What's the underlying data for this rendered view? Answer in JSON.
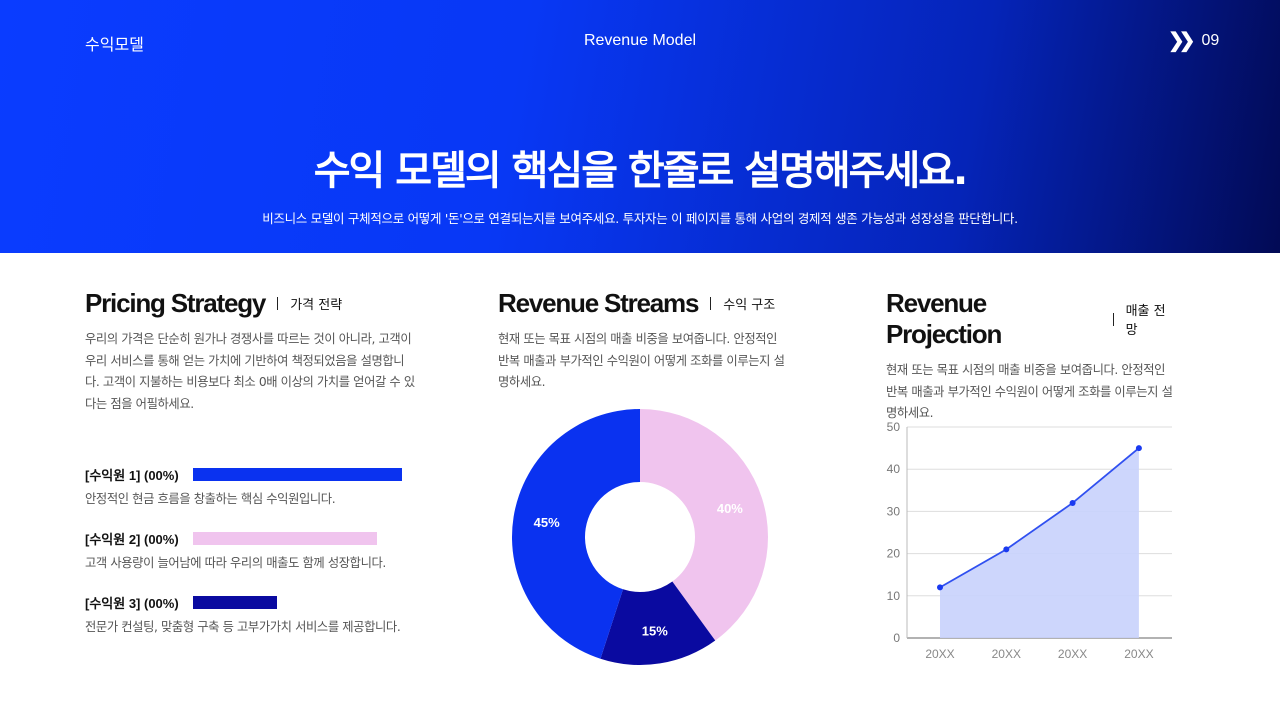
{
  "header": {
    "section": "수익모델",
    "center": "Revenue Model",
    "page_icon": "double-chevron-right",
    "page": "09"
  },
  "hero": {
    "title": "수익 모델의 핵심을 한줄로 설명해주세요.",
    "subtitle": "비즈니스 모델이 구체적으로 어떻게 '돈'으로 연결되는지를 보여주세요. 투자자는 이 페이지를 통해 사업의 경제적 생존 가능성과 성장성을 판단합니다."
  },
  "pricing": {
    "title": "Pricing Strategy",
    "subtitle": "가격 전략",
    "desc": "우리의 가격은 단순히 원가나 경쟁사를 따르는 것이 아니라, 고객이 우리 서비스를 통해 얻는 가치에 기반하여 책정되었음을 설명합니다. 고객이 지불하는 비용보다 최소 0배 이상의 가치를 얻어갈 수 있다는 점을 어필하세요.",
    "items": [
      {
        "label": "[수익원 1] (00%)",
        "text": "안정적인 현금 흐름을 창출하는 핵심 수익원입니다.",
        "fill": 100,
        "color": "#0a32f0"
      },
      {
        "label": "[수익원 2] (00%)",
        "text": "고객 사용량이 늘어남에 따라 우리의 매출도 함께 성장합니다.",
        "fill": 88,
        "color": "#f0c4ee"
      },
      {
        "label": "[수익원 3] (00%)",
        "text": "전문가 컨설팅, 맞춤형 구축 등 고부가가치 서비스를 제공합니다.",
        "fill": 40,
        "color": "#0a0aa0"
      }
    ]
  },
  "streams": {
    "title": "Revenue Streams",
    "subtitle": "수익 구조",
    "desc": "현재 또는 목표 시점의 매출 비중을 보여줍니다. 안정적인 반복 매출과 부가적인 수익원이 어떻게 조화를 이루는지 설명하세요."
  },
  "projection": {
    "title": "Revenue Projection",
    "subtitle": "매출 전망",
    "desc": "현재 또는 목표 시점의 매출 비중을 보여줍니다. 안정적인 반복 매출과 부가적인 수익원이 어떻게 조화를 이루는지 설명하세요."
  },
  "chart_data": [
    {
      "type": "pie",
      "donut": true,
      "values": [
        40,
        15,
        45
      ],
      "labels": [
        "40%",
        "15%",
        "45%"
      ],
      "colors": [
        "#f0c4ee",
        "#0a0aa0",
        "#0a32f0"
      ]
    },
    {
      "type": "area",
      "categories": [
        "20XX",
        "20XX",
        "20XX",
        "20XX"
      ],
      "values": [
        12,
        21,
        32,
        45
      ],
      "ylim": [
        0,
        50
      ],
      "yticks": [
        0,
        10,
        20,
        30,
        40,
        50
      ],
      "grid": true,
      "line_color": "#3050f0",
      "fill_color": "#c8d2fc"
    }
  ]
}
